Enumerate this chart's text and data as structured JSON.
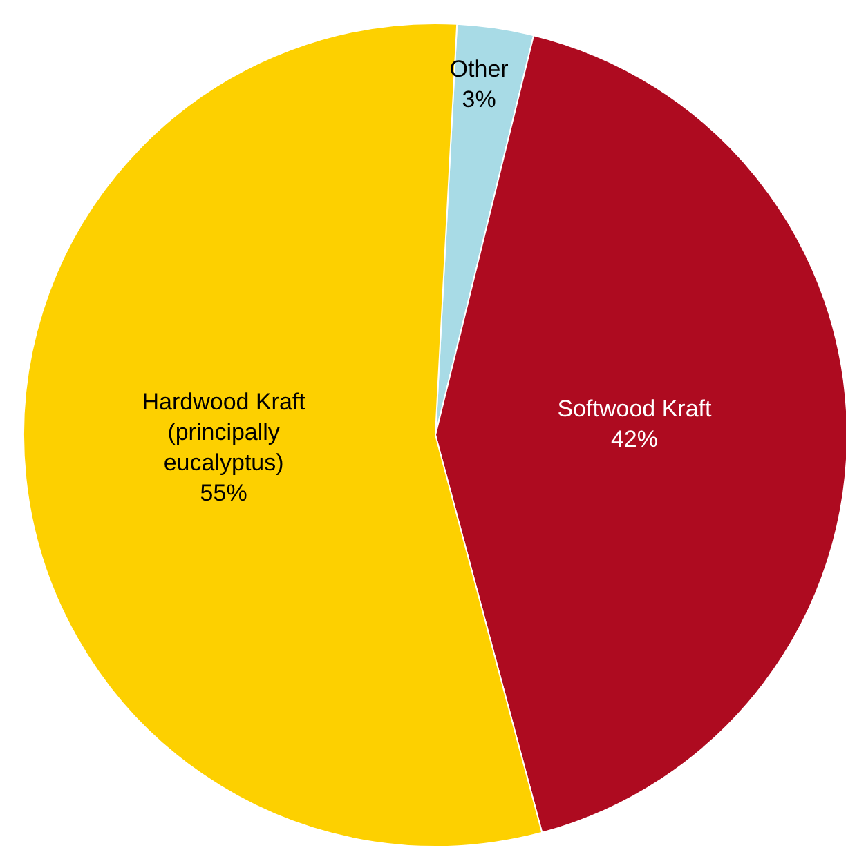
{
  "chart_data": {
    "type": "pie",
    "categories": [
      "Other",
      "Softwood Kraft",
      "Hardwood Kraft (principally eucalyptus)"
    ],
    "values": [
      3,
      42,
      55
    ],
    "colors": [
      "#a8dbe6",
      "#ae0b20",
      "#fdd000"
    ],
    "value_labels": [
      "3%",
      "42%",
      "55%"
    ],
    "legend": false
  }
}
